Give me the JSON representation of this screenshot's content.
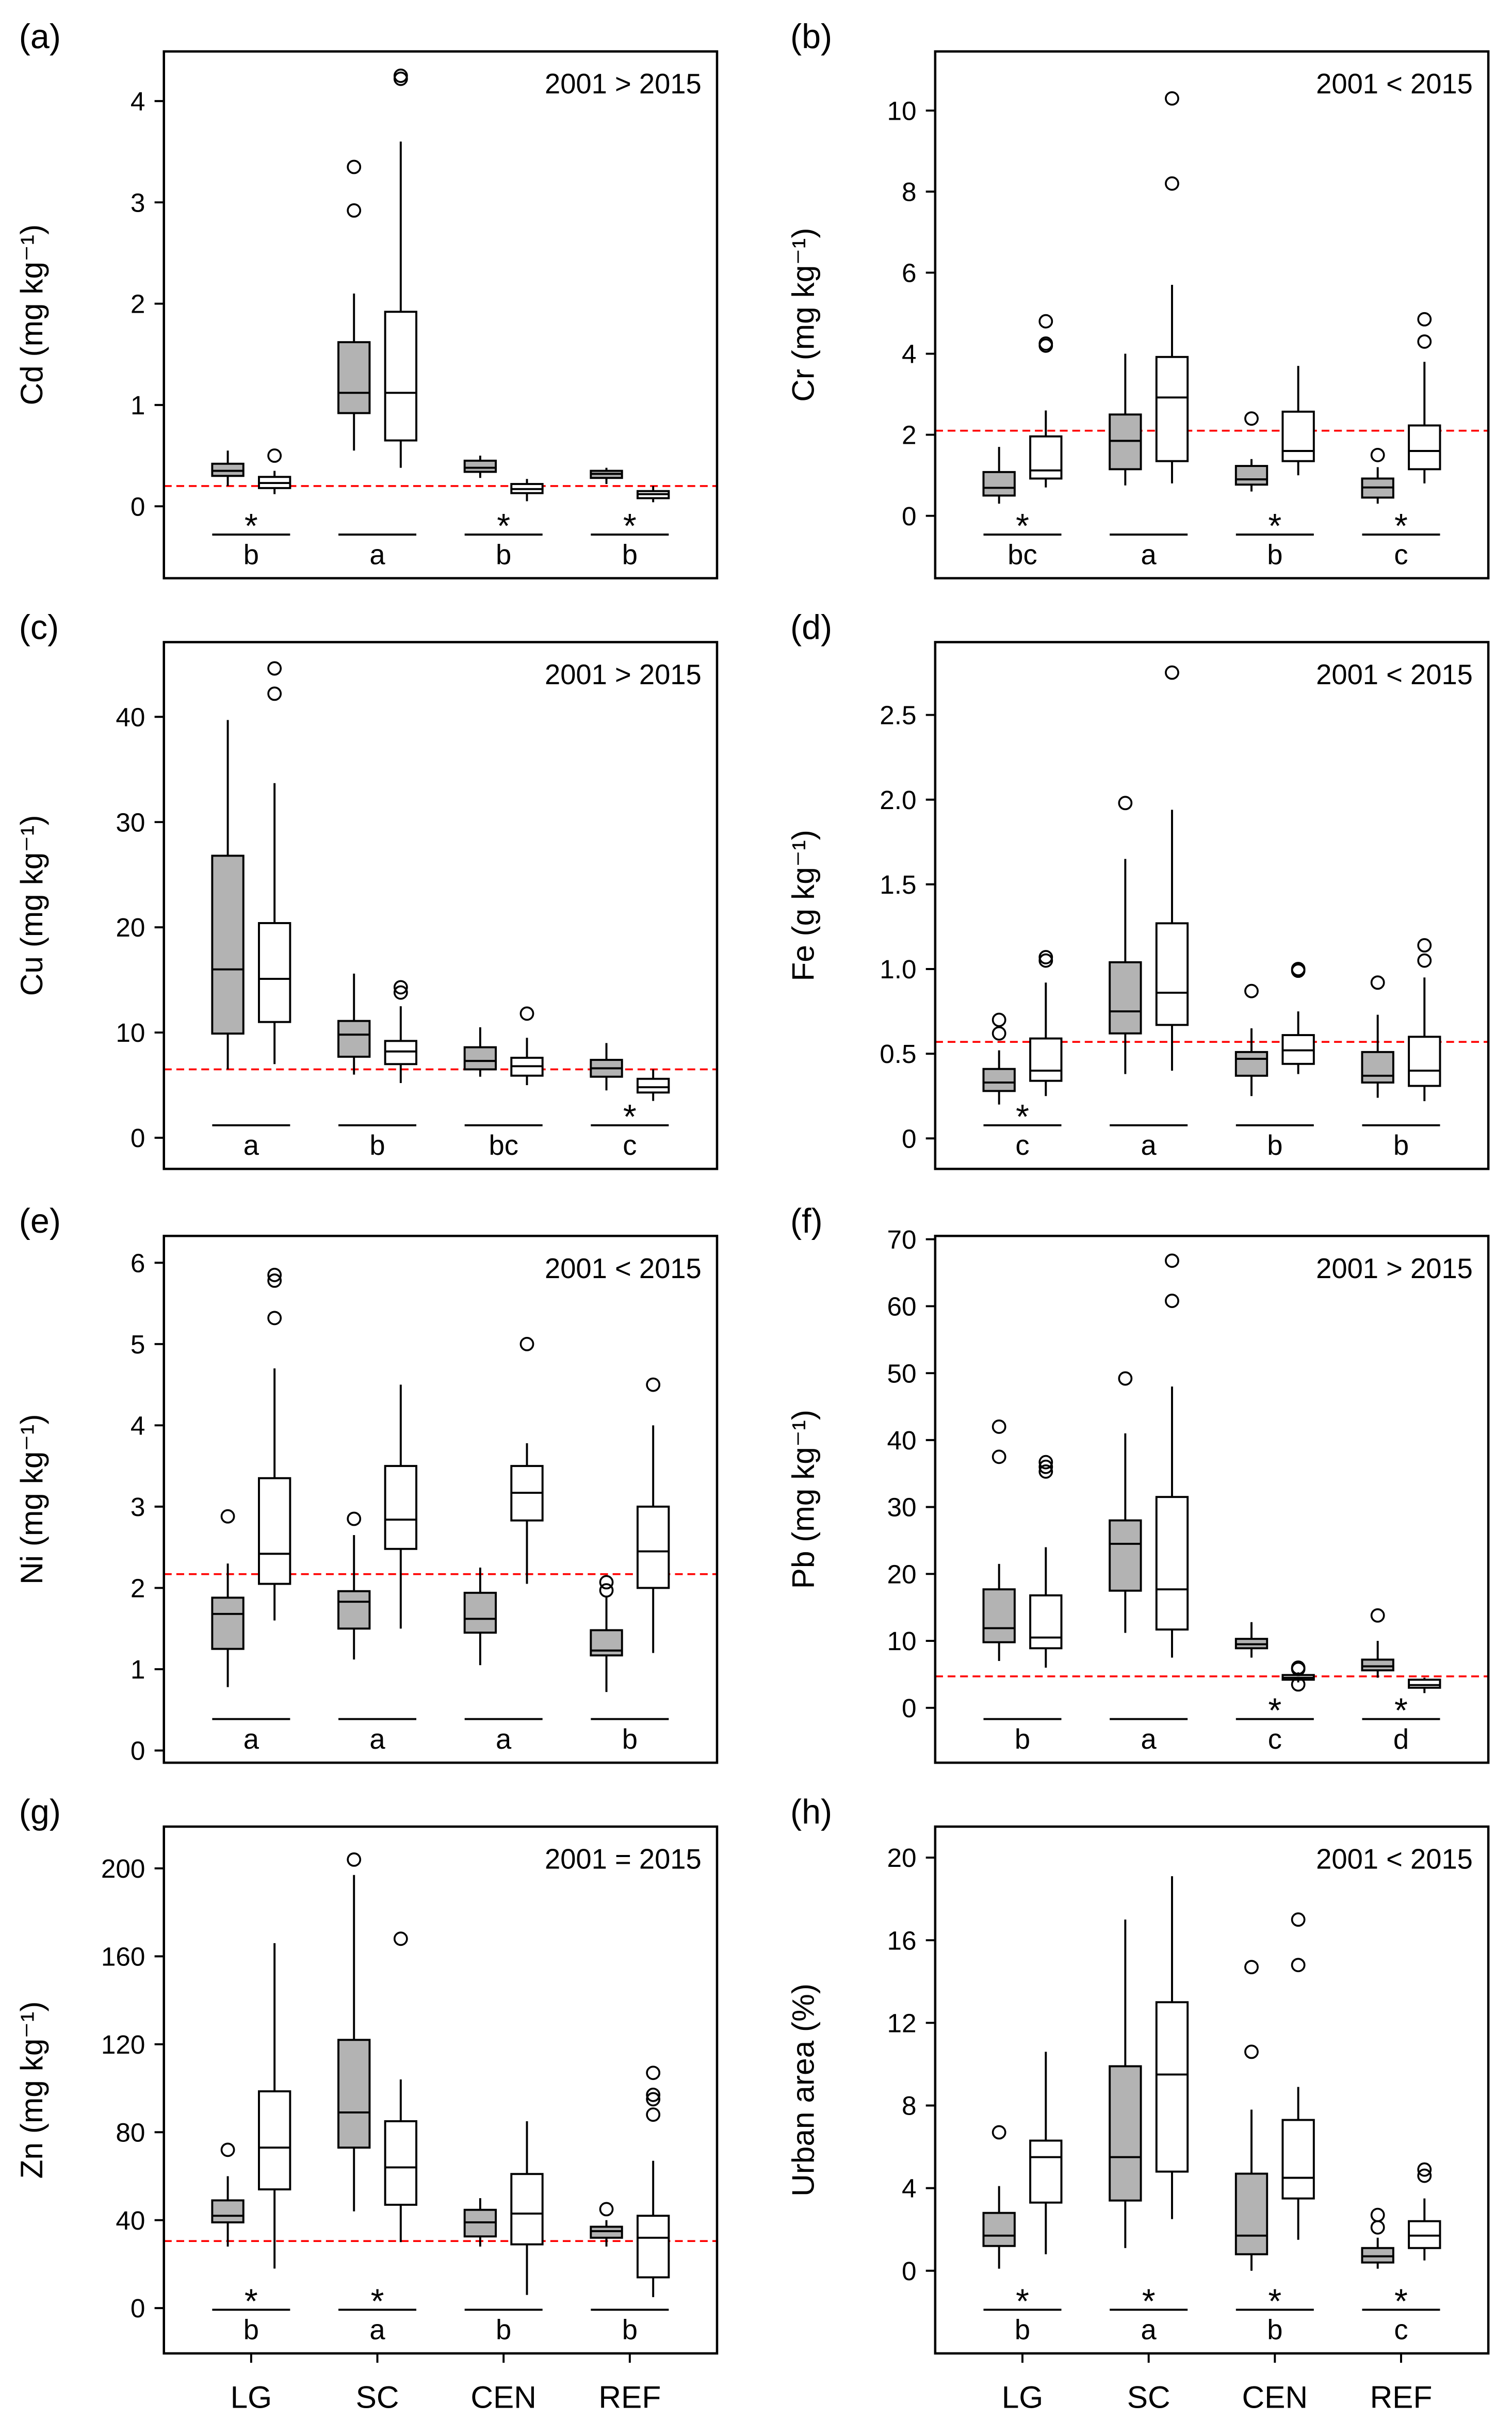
{
  "chart_data": {
    "type": "boxplot",
    "categories": [
      "LG",
      "SC",
      "CEN",
      "REF"
    ],
    "series_names": [
      "2001",
      "2015"
    ],
    "colors": {
      "s2001": "#b3b3b3",
      "s2015": "#ffffff",
      "reference_line": "#ff0000"
    },
    "panels": [
      {
        "label": "(a)",
        "ylabel": "Cd (mg kg⁻¹)",
        "annotation": "2001 > 2015",
        "ylim": [
          -0.71,
          4.49
        ],
        "yticks": [
          0,
          1,
          2,
          3,
          4
        ],
        "ref_line": 0.2,
        "stars": [
          true,
          false,
          true,
          true
        ],
        "letters": [
          "b",
          "a",
          "b",
          "b"
        ],
        "boxes": [
          [
            [
              0.2,
              0.3,
              0.35,
              0.42,
              0.55
            ],
            [],
            [
              0.12,
              0.18,
              0.23,
              0.29,
              0.35
            ],
            [
              0.5
            ]
          ],
          [
            [
              0.55,
              0.92,
              1.12,
              1.62,
              2.1
            ],
            [
              2.92,
              3.35
            ],
            [
              0.38,
              0.65,
              1.12,
              1.92,
              3.6
            ],
            [
              4.22,
              4.25
            ]
          ],
          [
            [
              0.28,
              0.34,
              0.38,
              0.45,
              0.5
            ],
            [],
            [
              0.05,
              0.13,
              0.17,
              0.22,
              0.27
            ],
            []
          ],
          [
            [
              0.22,
              0.28,
              0.32,
              0.35,
              0.38
            ],
            [],
            [
              0.04,
              0.08,
              0.12,
              0.15,
              0.2
            ],
            []
          ]
        ]
      },
      {
        "label": "(b)",
        "ylabel": "Cr (mg kg⁻¹)",
        "annotation": "2001 < 2015",
        "ylim": [
          -1.54,
          11.46
        ],
        "yticks": [
          0,
          2,
          4,
          6,
          8,
          10
        ],
        "ref_line": 2.1,
        "stars": [
          true,
          false,
          true,
          true
        ],
        "letters": [
          "bc",
          "a",
          "b",
          "c"
        ],
        "boxes": [
          [
            [
              0.3,
              0.5,
              0.69,
              1.08,
              1.7
            ],
            [],
            [
              0.7,
              0.92,
              1.12,
              1.96,
              2.6
            ],
            [
              4.2,
              4.25,
              4.8
            ]
          ],
          [
            [
              0.75,
              1.15,
              1.85,
              2.5,
              4.0
            ],
            [],
            [
              0.8,
              1.35,
              2.92,
              3.92,
              5.7
            ],
            [
              8.2,
              10.3
            ]
          ],
          [
            [
              0.6,
              0.77,
              0.9,
              1.23,
              1.4
            ],
            [
              2.4
            ],
            [
              1.0,
              1.35,
              1.6,
              2.57,
              3.7
            ],
            []
          ],
          [
            [
              0.3,
              0.45,
              0.7,
              0.92,
              1.2
            ],
            [
              1.5
            ],
            [
              0.8,
              1.15,
              1.6,
              2.23,
              3.8
            ],
            [
              4.3,
              4.85
            ]
          ]
        ]
      },
      {
        "label": "(c)",
        "ylabel": "Cu (mg kg⁻¹)",
        "annotation": "2001 > 2015",
        "ylim": [
          -2.96,
          47.1
        ],
        "yticks": [
          0,
          10,
          20,
          30,
          40
        ],
        "ref_line": 6.5,
        "stars": [
          false,
          false,
          false,
          true
        ],
        "letters": [
          "a",
          "b",
          "bc",
          "c"
        ],
        "boxes": [
          [
            [
              6.5,
              9.9,
              16,
              26.8,
              39.7
            ],
            [],
            [
              7,
              11,
              15.1,
              20.4,
              33.7
            ],
            [
              42.2,
              44.6
            ]
          ],
          [
            [
              6,
              7.7,
              9.8,
              11.1,
              15.6
            ],
            [],
            [
              5.2,
              7,
              8.2,
              9.2,
              12.5
            ],
            [
              13.8,
              14.3
            ]
          ],
          [
            [
              5.8,
              6.5,
              7.3,
              8.6,
              10.5
            ],
            [],
            [
              5,
              5.9,
              6.8,
              7.6,
              9.5
            ],
            [
              11.8
            ]
          ],
          [
            [
              4.5,
              5.8,
              6.6,
              7.4,
              9
            ],
            [],
            [
              3.5,
              4.3,
              4.8,
              5.6,
              6.5
            ],
            []
          ]
        ]
      },
      {
        "label": "(d)",
        "ylabel": "Fe (g kg⁻¹)",
        "annotation": "2001 < 2015",
        "ylim": [
          -0.18,
          2.93
        ],
        "yticks": [
          0,
          0.5,
          1.0,
          1.5,
          2.0,
          2.5
        ],
        "ytick_labels": [
          "0",
          "0.5",
          "1.0",
          "1.5",
          "2.0",
          "2.5"
        ],
        "ref_line": 0.57,
        "stars": [
          true,
          false,
          false,
          false
        ],
        "letters": [
          "c",
          "a",
          "b",
          "b"
        ],
        "boxes": [
          [
            [
              0.2,
              0.28,
              0.33,
              0.41,
              0.52
            ],
            [
              0.62,
              0.7
            ],
            [
              0.25,
              0.34,
              0.4,
              0.59,
              0.92
            ],
            [
              1.05,
              1.07
            ]
          ],
          [
            [
              0.38,
              0.62,
              0.75,
              1.04,
              1.65
            ],
            [
              1.98
            ],
            [
              0.4,
              0.67,
              0.86,
              1.27,
              1.94
            ],
            [
              2.75
            ]
          ],
          [
            [
              0.25,
              0.37,
              0.47,
              0.51,
              0.65
            ],
            [
              0.87
            ],
            [
              0.38,
              0.44,
              0.52,
              0.61,
              0.75
            ],
            [
              0.99,
              1.0
            ]
          ],
          [
            [
              0.24,
              0.33,
              0.37,
              0.51,
              0.73
            ],
            [
              0.92
            ],
            [
              0.22,
              0.31,
              0.4,
              0.6,
              0.95
            ],
            [
              1.05,
              1.14
            ]
          ]
        ]
      },
      {
        "label": "(e)",
        "ylabel": "Ni (mg kg⁻¹)",
        "annotation": "2001 < 2015",
        "ylim": [
          -0.15,
          6.33
        ],
        "yticks": [
          0,
          1,
          2,
          3,
          4,
          5,
          6
        ],
        "ref_line": 2.17,
        "stars": [
          false,
          false,
          false,
          false
        ],
        "letters": [
          "a",
          "a",
          "a",
          "b"
        ],
        "boxes": [
          [
            [
              0.78,
              1.25,
              1.68,
              1.88,
              2.3
            ],
            [
              2.88
            ],
            [
              1.6,
              2.05,
              2.42,
              3.35,
              4.7
            ],
            [
              5.32,
              5.78,
              5.85
            ]
          ],
          [
            [
              1.12,
              1.5,
              1.83,
              1.96,
              2.65
            ],
            [
              2.85
            ],
            [
              1.5,
              2.48,
              2.84,
              3.5,
              4.5
            ],
            []
          ],
          [
            [
              1.05,
              1.45,
              1.62,
              1.94,
              2.25
            ],
            [],
            [
              2.05,
              2.83,
              3.17,
              3.5,
              3.78
            ],
            [
              5.0
            ]
          ],
          [
            [
              0.72,
              1.17,
              1.23,
              1.48,
              1.9
            ],
            [
              1.97,
              2.07
            ],
            [
              1.2,
              2.0,
              2.45,
              3.0,
              4.0
            ],
            [
              4.5
            ]
          ]
        ]
      },
      {
        "label": "(f)",
        "ylabel": "Pb (mg kg⁻¹)",
        "annotation": "2001 > 2015",
        "ylim": [
          -8.2,
          70.5
        ],
        "yticks": [
          0,
          10,
          20,
          30,
          40,
          50,
          60,
          70
        ],
        "ref_line": 4.7,
        "stars": [
          false,
          false,
          true,
          true
        ],
        "letters": [
          "b",
          "a",
          "c",
          "d"
        ],
        "boxes": [
          [
            [
              7,
              9.8,
              11.9,
              17.7,
              21.5
            ],
            [
              37.5,
              42
            ],
            [
              6,
              8.9,
              10.5,
              16.8,
              24
            ],
            [
              35.3,
              36,
              36.7
            ]
          ],
          [
            [
              11.2,
              17.5,
              24.5,
              28,
              41
            ],
            [
              49.2
            ],
            [
              7.5,
              11.7,
              17.7,
              31.5,
              48
            ],
            [
              60.8,
              66.8
            ]
          ],
          [
            [
              7.5,
              8.9,
              9.5,
              10.3,
              12.8
            ],
            [],
            [
              3.8,
              4.2,
              4.5,
              4.9,
              5.3
            ],
            [
              3.5,
              5.8,
              6
            ]
          ],
          [
            [
              4.5,
              5.6,
              6.2,
              7.2,
              10
            ],
            [
              13.8
            ],
            [
              2.2,
              3.0,
              3.4,
              4.2,
              4.5
            ],
            []
          ]
        ]
      },
      {
        "label": "(g)",
        "ylabel": "Zn (mg kg⁻¹)",
        "annotation": "2001 = 2015",
        "ylim": [
          -20.6,
          219
        ],
        "yticks": [
          0,
          40,
          80,
          120,
          160,
          200
        ],
        "ref_line": 30.5,
        "stars": [
          true,
          true,
          false,
          false
        ],
        "letters": [
          "b",
          "a",
          "b",
          "b"
        ],
        "boxes": [
          [
            [
              28,
              39,
              42,
              49,
              60
            ],
            [
              72
            ],
            [
              18,
              54,
              73,
              98.6,
              166
            ],
            []
          ],
          [
            [
              44,
              73,
              89,
              122,
              197
            ],
            [
              204
            ],
            [
              30,
              47,
              64,
              85,
              104
            ],
            [
              168
            ]
          ],
          [
            [
              28,
              32.6,
              39,
              44.7,
              50
            ],
            [],
            [
              6,
              29,
              43,
              61,
              85
            ],
            []
          ],
          [
            [
              28,
              32,
              35,
              37,
              40
            ],
            [
              45
            ],
            [
              5,
              14,
              32,
              42,
              67
            ],
            [
              88,
              95,
              97,
              107
            ]
          ]
        ]
      },
      {
        "label": "(h)",
        "ylabel": "Urban area (%)",
        "annotation": "2001 < 2015",
        "ylim": [
          -4,
          21.5
        ],
        "yticks": [
          0,
          4,
          8,
          12,
          16,
          20
        ],
        "ref_line": null,
        "stars": [
          true,
          true,
          true,
          true
        ],
        "letters": [
          "b",
          "a",
          "b",
          "c"
        ],
        "boxes": [
          [
            [
              0.1,
              1.2,
              1.7,
              2.8,
              4.1
            ],
            [
              6.7
            ],
            [
              0.8,
              3.3,
              5.5,
              6.3,
              10.6
            ],
            []
          ],
          [
            [
              1.1,
              3.4,
              5.5,
              9.9,
              17
            ],
            [],
            [
              2.5,
              4.8,
              9.5,
              13,
              19.1
            ],
            []
          ],
          [
            [
              0,
              0.8,
              1.7,
              4.7,
              7.8
            ],
            [
              10.6,
              14.7
            ],
            [
              1.5,
              3.5,
              4.5,
              7.3,
              8.9
            ],
            [
              14.8,
              17
            ]
          ],
          [
            [
              0.1,
              0.4,
              0.7,
              1.1,
              1.6
            ],
            [
              2.1,
              2.7
            ],
            [
              0.5,
              1.1,
              1.7,
              2.4,
              3.5
            ],
            [
              4.6,
              4.9
            ]
          ]
        ]
      }
    ]
  }
}
